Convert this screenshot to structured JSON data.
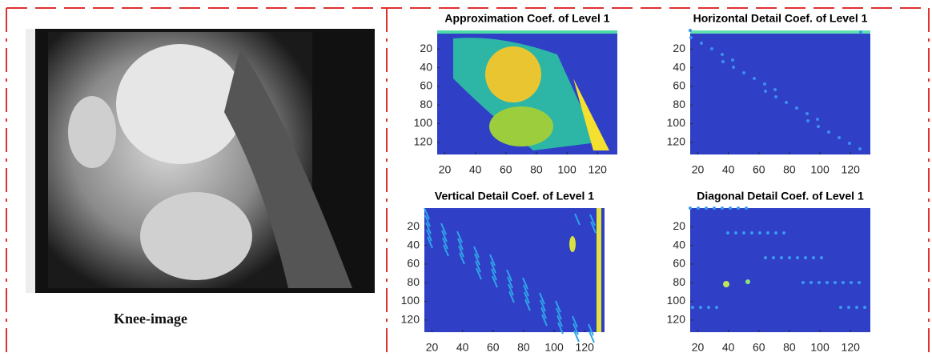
{
  "knee_image": {
    "caption": "Knee-image"
  },
  "panels": [
    {
      "title": "Approximation Coef. of Level 1",
      "xlim": [
        15,
        133
      ],
      "ylim": [
        0,
        133
      ],
      "xticks": [
        20,
        40,
        60,
        80,
        100,
        120
      ],
      "yticks": [
        20,
        40,
        60,
        80,
        100,
        120
      ]
    },
    {
      "title": "Horizontal Detail Coef. of Level 1",
      "xlim": [
        15,
        133
      ],
      "ylim": [
        0,
        133
      ],
      "xticks": [
        20,
        40,
        60,
        80,
        100,
        120
      ],
      "yticks": [
        20,
        40,
        60,
        80,
        100,
        120
      ]
    },
    {
      "title": "Vertical Detail Coef. of Level 1",
      "xlim": [
        15,
        133
      ],
      "ylim": [
        0,
        133
      ],
      "xticks": [
        20,
        40,
        60,
        80,
        100,
        120
      ],
      "yticks": [
        20,
        40,
        60,
        80,
        100,
        120
      ]
    },
    {
      "title": "Diagonal Detail Coef. of Level 1",
      "xlim": [
        15,
        133
      ],
      "ylim": [
        0,
        133
      ],
      "xticks": [
        20,
        40,
        60,
        80,
        100,
        120
      ],
      "yticks": [
        20,
        40,
        60,
        80,
        100,
        120
      ]
    }
  ]
}
